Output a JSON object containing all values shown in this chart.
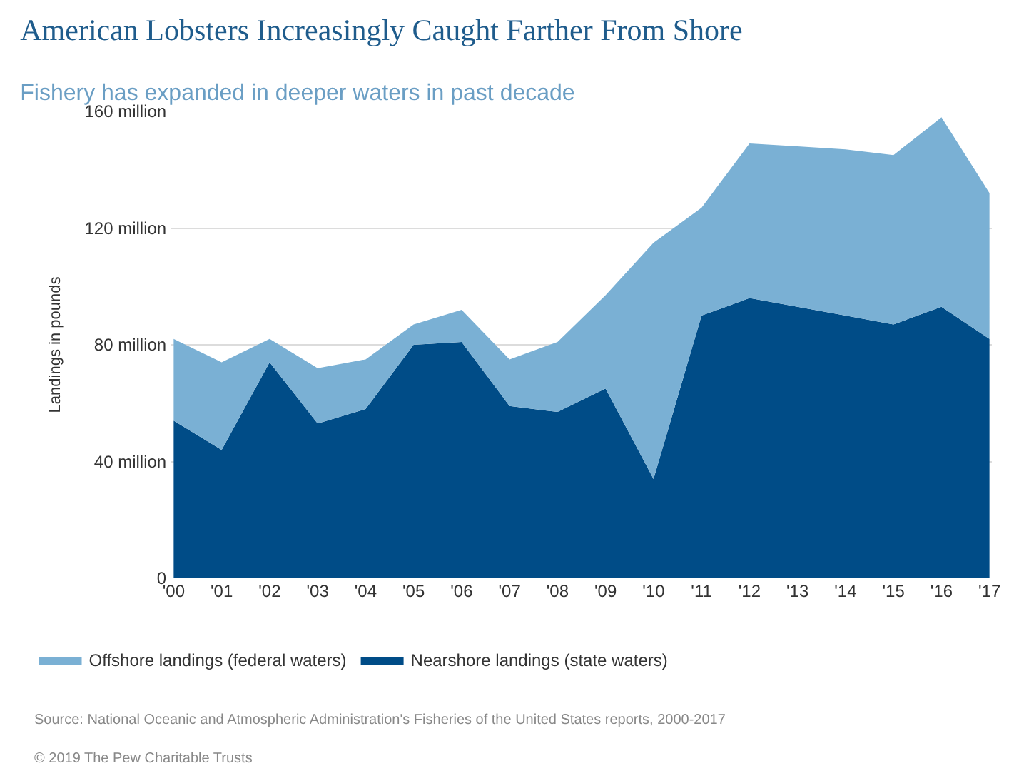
{
  "chart_data": {
    "type": "area",
    "title": "American Lobsters Increasingly Caught Farther From Shore",
    "subtitle": "Fishery has expanded in deeper waters in past decade",
    "ylabel": "Landings in pounds",
    "categories": [
      "'00",
      "'01",
      "'02",
      "'03",
      "'04",
      "'05",
      "'06",
      "'07",
      "'08",
      "'09",
      "'10",
      "'11",
      "'12",
      "'13",
      "'14",
      "'15",
      "'16",
      "'17"
    ],
    "stacked": true,
    "series": [
      {
        "name": "Nearshore landings (state waters)",
        "color": "#004c87",
        "values": [
          54,
          44,
          74,
          53,
          58,
          80,
          81,
          59,
          57,
          65,
          34,
          90,
          96,
          93,
          90,
          87,
          93,
          82
        ]
      },
      {
        "name": "Offshore landings (federal waters)",
        "color": "#7ab0d4",
        "values": [
          28,
          30,
          8,
          19,
          17,
          7,
          11,
          16,
          24,
          32,
          81,
          37,
          53,
          55,
          57,
          58,
          65,
          50
        ]
      }
    ],
    "ylim": [
      0,
      160
    ],
    "yticks": [
      0,
      {
        "value": 40,
        "label": "40 million"
      },
      {
        "value": 80,
        "label": "80 million"
      },
      {
        "value": 120,
        "label": "120 million"
      },
      {
        "value": 160,
        "label": "160 million"
      }
    ],
    "grid": "y",
    "legend": "bottom left",
    "annotations": [
      "Source: National Oceanic and Atmospheric Administration's Fisheries of the United States reports, 2000-2017",
      "© 2019 The Pew Charitable Trusts"
    ]
  }
}
